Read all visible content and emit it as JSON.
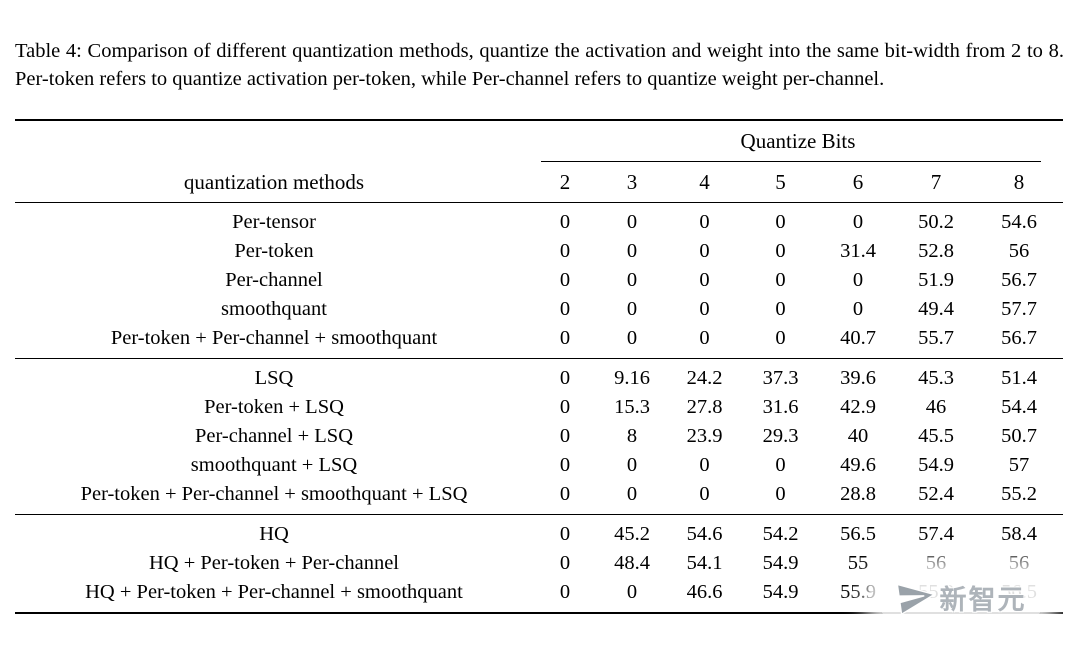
{
  "caption": "Table 4: Comparison of different quantization methods, quantize the activation and weight into the same bit-width from 2 to 8. Per-token refers to quantize activation per-token, while Per-channel refers to quantize weight per-channel.",
  "table": {
    "span_header": "Quantize Bits",
    "method_header": "quantization methods",
    "bit_labels": [
      "2",
      "3",
      "4",
      "5",
      "6",
      "7",
      "8"
    ],
    "groups": [
      [
        {
          "method": "Per-tensor",
          "values": [
            "0",
            "0",
            "0",
            "0",
            "0",
            "50.2",
            "54.6"
          ]
        },
        {
          "method": "Per-token",
          "values": [
            "0",
            "0",
            "0",
            "0",
            "31.4",
            "52.8",
            "56"
          ]
        },
        {
          "method": "Per-channel",
          "values": [
            "0",
            "0",
            "0",
            "0",
            "0",
            "51.9",
            "56.7"
          ]
        },
        {
          "method": "smoothquant",
          "values": [
            "0",
            "0",
            "0",
            "0",
            "0",
            "49.4",
            "57.7"
          ]
        },
        {
          "method": "Per-token + Per-channel + smoothquant",
          "values": [
            "0",
            "0",
            "0",
            "0",
            "40.7",
            "55.7",
            "56.7"
          ]
        }
      ],
      [
        {
          "method": "LSQ",
          "values": [
            "0",
            "9.16",
            "24.2",
            "37.3",
            "39.6",
            "45.3",
            "51.4"
          ]
        },
        {
          "method": "Per-token + LSQ",
          "values": [
            "0",
            "15.3",
            "27.8",
            "31.6",
            "42.9",
            "46",
            "54.4"
          ]
        },
        {
          "method": "Per-channel + LSQ",
          "values": [
            "0",
            "8",
            "23.9",
            "29.3",
            "40",
            "45.5",
            "50.7"
          ]
        },
        {
          "method": "smoothquant + LSQ",
          "values": [
            "0",
            "0",
            "0",
            "0",
            "49.6",
            "54.9",
            "57"
          ]
        },
        {
          "method": "Per-token + Per-channel + smoothquant + LSQ",
          "values": [
            "0",
            "0",
            "0",
            "0",
            "28.8",
            "52.4",
            "55.2"
          ]
        }
      ],
      [
        {
          "method": "HQ",
          "values": [
            "0",
            "45.2",
            "54.6",
            "54.2",
            "56.5",
            "57.4",
            "58.4"
          ]
        },
        {
          "method": "HQ + Per-token + Per-channel",
          "values": [
            "0",
            "48.4",
            "54.1",
            "54.9",
            "55",
            "56",
            "56"
          ]
        },
        {
          "method": "HQ + Per-token + Per-channel + smoothquant",
          "values": [
            "0",
            "0",
            "46.6",
            "54.9",
            "55.9",
            "55.8",
            "56.5"
          ]
        }
      ]
    ]
  },
  "watermark": {
    "text": "新智元"
  },
  "colors": {
    "text": "#000000",
    "background": "#ffffff",
    "watermark_gray": "#aeb4ba"
  }
}
